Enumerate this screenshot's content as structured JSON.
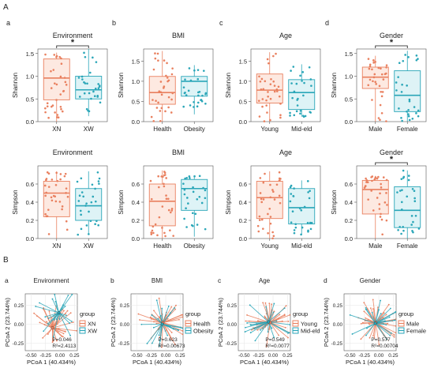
{
  "section_labels": [
    "A",
    "B"
  ],
  "colors": {
    "group1": "#e9805f",
    "group2": "#2aa6b8",
    "group1_fill": "#fde9e1",
    "group2_fill": "#def3f6",
    "star": "#111111"
  },
  "chart_data": [
    {
      "id": "A-a-shannon",
      "type": "box",
      "panel_letter": "a",
      "title": "Environment",
      "ylabel": "Shannon",
      "categories": [
        "XN",
        "XW"
      ],
      "ylim": [
        0,
        1.6
      ],
      "yticks": [
        "0.0",
        "0.5",
        "1.0",
        "1.5"
      ],
      "significance": "*",
      "boxes": [
        {
          "q1": 0.48,
          "median": 0.96,
          "q3": 1.38,
          "min": 0.0,
          "max": 1.52
        },
        {
          "q1": 0.5,
          "median": 0.7,
          "q3": 1.0,
          "min": 0.12,
          "max": 1.6
        }
      ]
    },
    {
      "id": "A-b-shannon",
      "type": "box",
      "panel_letter": "b",
      "title": "BMI",
      "ylabel": "Shannon",
      "categories": [
        "Health",
        "Obesity"
      ],
      "ylim": [
        0,
        1.8
      ],
      "yticks": [
        "0.0",
        "0.5",
        "1.0",
        "1.5"
      ],
      "significance": "",
      "boxes": [
        {
          "q1": 0.43,
          "median": 0.72,
          "q3": 1.12,
          "min": 0.0,
          "max": 1.75
        },
        {
          "q1": 0.63,
          "median": 1.0,
          "q3": 1.12,
          "min": 0.18,
          "max": 1.4
        }
      ]
    },
    {
      "id": "A-c-shannon",
      "type": "box",
      "panel_letter": "c",
      "title": "Age",
      "ylabel": "Shannon",
      "categories": [
        "Young",
        "Mid-eld"
      ],
      "ylim": [
        0,
        1.8
      ],
      "yticks": [
        "0.0",
        "0.5",
        "1.0",
        "1.5"
      ],
      "significance": "",
      "boxes": [
        {
          "q1": 0.46,
          "median": 0.78,
          "q3": 1.18,
          "min": 0.0,
          "max": 1.72
        },
        {
          "q1": 0.3,
          "median": 0.72,
          "q3": 1.04,
          "min": 0.12,
          "max": 1.42
        }
      ]
    },
    {
      "id": "A-d-shannon",
      "type": "box",
      "panel_letter": "d",
      "title": "Gender",
      "ylabel": "Shannon",
      "categories": [
        "Male",
        "Female"
      ],
      "ylim": [
        0,
        1.6
      ],
      "yticks": [
        "0.0",
        "0.5",
        "1.0",
        "1.5"
      ],
      "significance": "*",
      "boxes": [
        {
          "q1": 0.73,
          "median": 0.98,
          "q3": 1.2,
          "min": 0.0,
          "max": 1.45
        },
        {
          "q1": 0.22,
          "median": 0.58,
          "q3": 1.12,
          "min": 0.0,
          "max": 1.56
        }
      ]
    },
    {
      "id": "A-a-simpson",
      "type": "box",
      "panel_letter": "",
      "title": "Environment",
      "ylabel": "Simpson",
      "categories": [
        "XN",
        "XW"
      ],
      "ylim": [
        0,
        0.8
      ],
      "yticks": [
        "0.0",
        "0.2",
        "0.4",
        "0.6"
      ],
      "significance": "",
      "boxes": [
        {
          "q1": 0.24,
          "median": 0.5,
          "q3": 0.63,
          "min": 0.0,
          "max": 0.74
        },
        {
          "q1": 0.2,
          "median": 0.36,
          "q3": 0.55,
          "min": 0.04,
          "max": 0.74
        }
      ]
    },
    {
      "id": "A-b-simpson",
      "type": "box",
      "panel_letter": "",
      "title": "BMI",
      "ylabel": "Simpson",
      "categories": [
        "Health",
        "Obesity"
      ],
      "ylim": [
        0,
        0.8
      ],
      "yticks": [
        "0.0",
        "0.2",
        "0.4",
        "0.6"
      ],
      "significance": "",
      "boxes": [
        {
          "q1": 0.14,
          "median": 0.41,
          "q3": 0.6,
          "min": 0.0,
          "max": 0.75
        },
        {
          "q1": 0.31,
          "median": 0.55,
          "q3": 0.65,
          "min": 0.02,
          "max": 0.69
        }
      ]
    },
    {
      "id": "A-c-simpson",
      "type": "box",
      "panel_letter": "",
      "title": "Age",
      "ylabel": "Simpson",
      "categories": [
        "Young",
        "Mid-eld"
      ],
      "ylim": [
        0,
        0.8
      ],
      "yticks": [
        "0.0",
        "0.2",
        "0.4",
        "0.6"
      ],
      "significance": "",
      "boxes": [
        {
          "q1": 0.22,
          "median": 0.45,
          "q3": 0.63,
          "min": 0.0,
          "max": 0.74
        },
        {
          "q1": 0.16,
          "median": 0.34,
          "q3": 0.55,
          "min": 0.04,
          "max": 0.64
        }
      ]
    },
    {
      "id": "A-d-simpson",
      "type": "box",
      "panel_letter": "",
      "title": "Gender",
      "ylabel": "Simpson",
      "categories": [
        "Male",
        "Female"
      ],
      "ylim": [
        0,
        0.8
      ],
      "yticks": [
        "0.0",
        "0.2",
        "0.4",
        "0.6"
      ],
      "significance": "*",
      "boxes": [
        {
          "q1": 0.27,
          "median": 0.54,
          "q3": 0.64,
          "min": 0.0,
          "max": 0.69
        },
        {
          "q1": 0.12,
          "median": 0.31,
          "q3": 0.57,
          "min": 0.0,
          "max": 0.75
        }
      ]
    },
    {
      "id": "B-a",
      "type": "scatter",
      "panel_letter": "a",
      "title": "Environment",
      "xlabel": "PCoA 1 (40.434%)",
      "ylabel": "PCoA 2 (23.744%)",
      "xlim": [
        -0.6,
        0.3
      ],
      "ylim": [
        -0.35,
        0.4
      ],
      "xticks": [
        "-0.50",
        "-0.25",
        "0.00",
        "0.25"
      ],
      "yticks": [
        "-0.25",
        "0.00",
        "0.25"
      ],
      "legend_title": "group",
      "legend": [
        "XN",
        "XW"
      ],
      "stats": [
        "P=0.046",
        "R²=2.4113"
      ],
      "centroids": [
        [
          -0.13,
          -0.05
        ],
        [
          -0.02,
          0.15
        ]
      ]
    },
    {
      "id": "B-b",
      "type": "scatter",
      "panel_letter": "b",
      "title": "BMI",
      "xlabel": "PCoA 1 (40.434%)",
      "ylabel": "PCoA 2 (23.744%)",
      "xlim": [
        -0.6,
        0.3
      ],
      "ylim": [
        -0.35,
        0.4
      ],
      "xticks": [
        "-0.50",
        "-0.25",
        "0.00",
        "0.25"
      ],
      "yticks": [
        "-0.25",
        "0.00",
        "0.25"
      ],
      "legend_title": "group",
      "legend": [
        "Health",
        "Obesity"
      ],
      "stats": [
        "P=0.623",
        "R²=0.00673"
      ],
      "centroids": [
        [
          -0.05,
          0.02
        ],
        [
          -0.06,
          0.0
        ]
      ]
    },
    {
      "id": "B-c",
      "type": "scatter",
      "panel_letter": "c",
      "title": "Age",
      "xlabel": "PCoA 1 (40.434%)",
      "ylabel": "PCoA 2 (23.744%)",
      "xlim": [
        -0.6,
        0.3
      ],
      "ylim": [
        -0.35,
        0.4
      ],
      "xticks": [
        "-0.50",
        "-0.25",
        "0.00",
        "0.25"
      ],
      "yticks": [
        "-0.25",
        "0.00",
        "0.25"
      ],
      "legend_title": "group",
      "legend": [
        "Young",
        "Mid-eld"
      ],
      "stats": [
        "P=0.549",
        "R²=0.0077"
      ],
      "centroids": [
        [
          -0.05,
          0.02
        ],
        [
          -0.08,
          0.03
        ]
      ]
    },
    {
      "id": "B-d",
      "type": "scatter",
      "panel_letter": "d",
      "title": "Gender",
      "xlabel": "PCoA 1 (40.434%)",
      "ylabel": "PCoA 2 (23.744%)",
      "xlim": [
        -0.6,
        0.3
      ],
      "ylim": [
        -0.35,
        0.4
      ],
      "xticks": [
        "-0.50",
        "-0.25",
        "0.00",
        "0.25"
      ],
      "yticks": [
        "-0.25",
        "0.00",
        "0.25"
      ],
      "legend_title": "group",
      "legend": [
        "Male",
        "Female"
      ],
      "stats": [
        "P=0.577",
        "R²=0.00704"
      ],
      "centroids": [
        [
          -0.05,
          0.02
        ],
        [
          -0.06,
          0.01
        ]
      ]
    }
  ]
}
